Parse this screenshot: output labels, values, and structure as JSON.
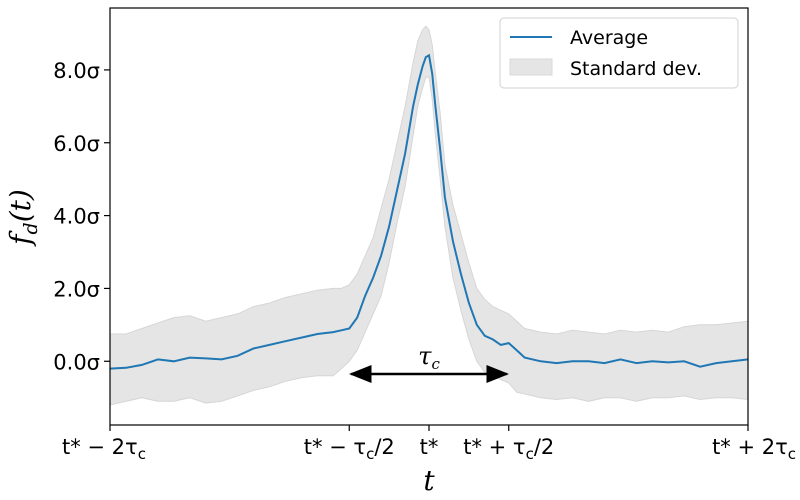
{
  "chart_data": {
    "type": "line",
    "title": "",
    "xlabel": "t",
    "ylabel": "f_d(t)",
    "xlim": [
      -2,
      2
    ],
    "ylim": [
      -1.75,
      9.7
    ],
    "x_unit": "tau_c",
    "y_unit": "sigma",
    "grid": false,
    "legend_position": "top-right",
    "x_ticks": [
      {
        "value": -2,
        "label": "t* − 2τ_c"
      },
      {
        "value": -0.5,
        "label": "t* − τ_c/2"
      },
      {
        "value": 0,
        "label": "t*"
      },
      {
        "value": 0.5,
        "label": "t* + τ_c/2"
      },
      {
        "value": 2,
        "label": "t* + 2τ_c"
      }
    ],
    "y_ticks": [
      {
        "value": 0,
        "label": "0.0σ"
      },
      {
        "value": 2,
        "label": "2.0σ"
      },
      {
        "value": 4,
        "label": "4.0σ"
      },
      {
        "value": 6,
        "label": "6.0σ"
      },
      {
        "value": 8,
        "label": "8.0σ"
      }
    ],
    "series": [
      {
        "name": "Average",
        "kind": "line",
        "color": "#1f77b4",
        "x": [
          -2.0,
          -1.9,
          -1.8,
          -1.7,
          -1.6,
          -1.5,
          -1.4,
          -1.3,
          -1.2,
          -1.1,
          -1.0,
          -0.9,
          -0.8,
          -0.7,
          -0.6,
          -0.55,
          -0.5,
          -0.45,
          -0.4,
          -0.35,
          -0.3,
          -0.25,
          -0.2,
          -0.15,
          -0.1,
          -0.07,
          -0.04,
          -0.02,
          0.0,
          0.02,
          0.04,
          0.07,
          0.1,
          0.15,
          0.2,
          0.25,
          0.3,
          0.35,
          0.4,
          0.45,
          0.5,
          0.55,
          0.6,
          0.7,
          0.8,
          0.9,
          1.0,
          1.1,
          1.2,
          1.3,
          1.4,
          1.5,
          1.6,
          1.7,
          1.8,
          1.9,
          2.0
        ],
        "y": [
          -0.2,
          -0.18,
          -0.1,
          0.05,
          0.0,
          0.1,
          0.08,
          0.05,
          0.15,
          0.35,
          0.45,
          0.55,
          0.65,
          0.75,
          0.8,
          0.85,
          0.9,
          1.2,
          1.8,
          2.3,
          2.9,
          3.7,
          4.7,
          5.7,
          7.0,
          7.6,
          8.1,
          8.35,
          8.4,
          7.9,
          7.0,
          5.8,
          4.5,
          3.3,
          2.4,
          1.6,
          1.0,
          0.7,
          0.6,
          0.45,
          0.5,
          0.3,
          0.1,
          0.0,
          -0.05,
          0.0,
          0.0,
          -0.05,
          0.05,
          -0.05,
          0.0,
          -0.03,
          0.0,
          -0.15,
          -0.05,
          0.0,
          0.05
        ]
      },
      {
        "name": "Standard dev.",
        "kind": "band",
        "color": "#e5e5e5",
        "x": [
          -2.0,
          -1.9,
          -1.8,
          -1.7,
          -1.6,
          -1.5,
          -1.4,
          -1.3,
          -1.2,
          -1.1,
          -1.0,
          -0.9,
          -0.8,
          -0.7,
          -0.6,
          -0.55,
          -0.5,
          -0.45,
          -0.4,
          -0.35,
          -0.3,
          -0.25,
          -0.2,
          -0.15,
          -0.1,
          -0.07,
          -0.04,
          -0.02,
          0.0,
          0.02,
          0.04,
          0.07,
          0.1,
          0.15,
          0.2,
          0.25,
          0.3,
          0.35,
          0.4,
          0.45,
          0.5,
          0.55,
          0.6,
          0.7,
          0.8,
          0.9,
          1.0,
          1.1,
          1.2,
          1.3,
          1.4,
          1.5,
          1.6,
          1.7,
          1.8,
          1.9,
          2.0
        ],
        "lower": [
          -1.2,
          -1.1,
          -1.0,
          -1.1,
          -1.1,
          -1.0,
          -1.15,
          -1.1,
          -0.95,
          -0.8,
          -0.7,
          -0.55,
          -0.45,
          -0.4,
          -0.4,
          -0.2,
          0.0,
          0.3,
          0.8,
          1.3,
          1.8,
          2.7,
          3.8,
          4.8,
          6.2,
          7.0,
          7.5,
          7.8,
          7.8,
          7.2,
          6.2,
          5.0,
          3.7,
          2.3,
          1.4,
          0.6,
          0.0,
          -0.3,
          -0.4,
          -0.5,
          -0.6,
          -0.85,
          -0.9,
          -1.0,
          -1.05,
          -1.0,
          -1.1,
          -1.0,
          -1.0,
          -1.1,
          -1.0,
          -1.0,
          -0.95,
          -1.05,
          -1.0,
          -1.0,
          -1.05
        ],
        "upper": [
          0.75,
          0.75,
          0.9,
          1.05,
          1.2,
          1.25,
          1.1,
          1.2,
          1.3,
          1.5,
          1.6,
          1.75,
          1.85,
          1.95,
          2.0,
          2.0,
          2.1,
          2.4,
          2.9,
          3.4,
          4.2,
          5.0,
          6.0,
          7.0,
          8.2,
          8.8,
          9.1,
          9.2,
          9.1,
          8.7,
          7.9,
          6.8,
          5.4,
          4.3,
          3.5,
          2.7,
          2.0,
          1.7,
          1.5,
          1.4,
          1.3,
          1.1,
          0.9,
          0.8,
          0.75,
          0.85,
          0.8,
          0.75,
          0.85,
          0.8,
          0.85,
          0.8,
          0.95,
          1.0,
          1.0,
          1.05,
          1.1
        ]
      }
    ],
    "annotations": [
      {
        "type": "double-arrow",
        "x_start": -0.5,
        "x_end": 0.5,
        "y": -0.35,
        "label": "τ_c"
      }
    ]
  }
}
